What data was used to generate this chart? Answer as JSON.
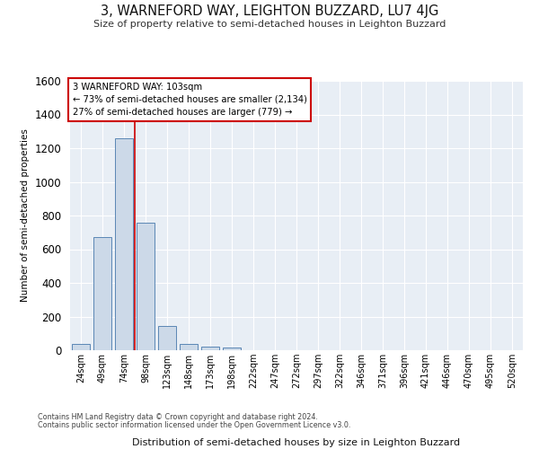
{
  "title": "3, WARNEFORD WAY, LEIGHTON BUZZARD, LU7 4JG",
  "subtitle": "Size of property relative to semi-detached houses in Leighton Buzzard",
  "xlabel": "Distribution of semi-detached houses by size in Leighton Buzzard",
  "ylabel": "Number of semi-detached properties",
  "footnote1": "Contains HM Land Registry data © Crown copyright and database right 2024.",
  "footnote2": "Contains public sector information licensed under the Open Government Licence v3.0.",
  "categories": [
    "24sqm",
    "49sqm",
    "74sqm",
    "98sqm",
    "123sqm",
    "148sqm",
    "173sqm",
    "198sqm",
    "222sqm",
    "247sqm",
    "272sqm",
    "297sqm",
    "322sqm",
    "346sqm",
    "371sqm",
    "396sqm",
    "421sqm",
    "446sqm",
    "470sqm",
    "495sqm",
    "520sqm"
  ],
  "values": [
    35,
    670,
    1260,
    760,
    145,
    35,
    20,
    15,
    0,
    0,
    0,
    0,
    0,
    0,
    0,
    0,
    0,
    0,
    0,
    0,
    0
  ],
  "bar_color": "#ccd9e8",
  "bar_edge_color": "#5b87b5",
  "bg_color": "#e8eef5",
  "grid_color": "#ffffff",
  "annotation_line1": "3 WARNEFORD WAY: 103sqm",
  "annotation_line2": "← 73% of semi-detached houses are smaller (2,134)",
  "annotation_line3": "27% of semi-detached houses are larger (779) →",
  "annotation_box_color": "#ffffff",
  "annotation_box_edge": "#cc0000",
  "vline_color": "#cc0000",
  "vline_x": 2.5,
  "ylim": [
    0,
    1600
  ],
  "yticks": [
    0,
    200,
    400,
    600,
    800,
    1000,
    1200,
    1400,
    1600
  ]
}
